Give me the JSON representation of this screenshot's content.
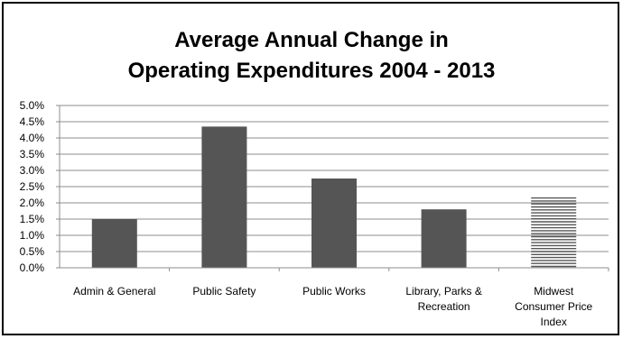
{
  "chart_data": {
    "type": "bar",
    "title_lines": [
      "Average Annual Change in",
      "Operating Expenditures 2004 - 2013"
    ],
    "xlabel": "",
    "ylabel": "",
    "categories": [
      [
        "Admin & General"
      ],
      [
        "Public Safety"
      ],
      [
        "Public Works"
      ],
      [
        "Library, Parks &",
        "Recreation"
      ],
      [
        "Midwest",
        "Consumer Price",
        "Index"
      ]
    ],
    "values": [
      1.5,
      4.35,
      2.75,
      1.8,
      2.2
    ],
    "patterns": [
      "solid",
      "solid",
      "solid",
      "solid",
      "horizontal-lines"
    ],
    "ylim": [
      0,
      5.0
    ],
    "yticks": [
      "0.0%",
      "0.5%",
      "1.0%",
      "1.5%",
      "2.0%",
      "2.5%",
      "3.0%",
      "3.5%",
      "4.0%",
      "4.5%",
      "5.0%"
    ],
    "grid": true,
    "legend": "none",
    "colors": {
      "bar": "#555555",
      "grid": "#8c8c8c",
      "axis": "#8c8c8c"
    }
  }
}
